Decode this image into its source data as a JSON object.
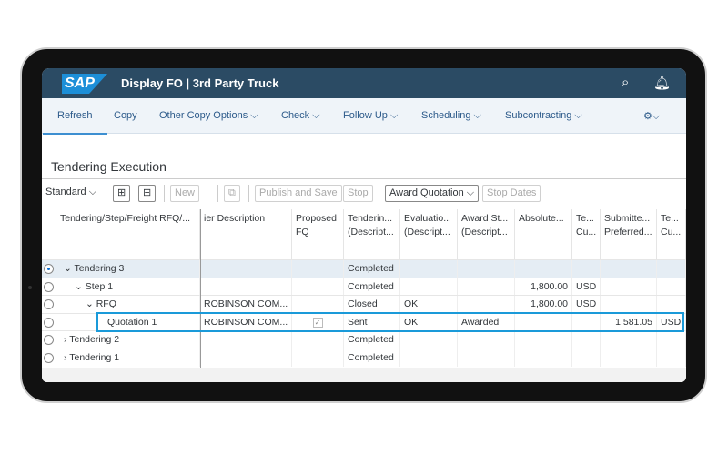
{
  "shell": {
    "logo": "SAP",
    "title": "Display FO | 3rd Party Truck",
    "search_icon": "search-icon",
    "bell_icon": "bell-icon"
  },
  "actions": [
    "Refresh",
    "Copy",
    "Other Copy Options ⌵",
    "Check ⌵",
    "Follow Up ⌵",
    "Scheduling ⌵",
    "Subcontracting ⌵"
  ],
  "settings": "⚙⌵",
  "section_title": "Tendering Execution",
  "toolbar": {
    "variant": "Standard ⌵",
    "expand": "⊞",
    "collapse": "⊟",
    "new": "New",
    "copy": "⧉",
    "publish": "Publish and Save",
    "stop": "Stop",
    "award": "Award Quotation ⌵",
    "stop_dates": "Stop Dates"
  },
  "columns": [
    "Tendering/Step/Freight RFQ/...",
    "ier Description",
    "Proposed\nFQ",
    "Tenderin...\n(Descript...",
    "Evaluatio...\n(Descript...",
    "Award St...\n(Descript...",
    "Absolute...",
    "Te...\nCu...",
    "Submitte...\nPreferred...",
    "Te...\nCu..."
  ],
  "rows": [
    {
      "selected": true,
      "node": "⌄ Tendering  3",
      "indent": 0,
      "desc": "",
      "fq": false,
      "tender": "Completed",
      "eval": "",
      "award": "",
      "abs": "",
      "cur": "",
      "sub": "",
      "cur2": ""
    },
    {
      "selected": false,
      "node": "⌄ Step  1",
      "indent": 1,
      "desc": "",
      "fq": false,
      "tender": "Completed",
      "eval": "",
      "award": "",
      "abs": "1,800.00",
      "cur": "USD",
      "sub": "",
      "cur2": ""
    },
    {
      "selected": false,
      "node": "⌄ RFQ",
      "indent": 2,
      "desc": "ROBINSON COM...",
      "fq": false,
      "tender": "Closed",
      "eval": "OK",
      "award": "",
      "abs": "1,800.00",
      "cur": "USD",
      "sub": "",
      "cur2": ""
    },
    {
      "selected": false,
      "node": "Quotation  1",
      "indent": 3,
      "desc": "ROBINSON COM...",
      "fq": true,
      "tender": "Sent",
      "eval": "OK",
      "award": "Awarded",
      "abs": "",
      "cur": "",
      "sub": "1,581.05",
      "cur2": "USD"
    },
    {
      "selected": false,
      "node": "› Tendering  2",
      "indent": 0,
      "desc": "",
      "fq": false,
      "tender": "Completed",
      "eval": "",
      "award": "",
      "abs": "",
      "cur": "",
      "sub": "",
      "cur2": ""
    },
    {
      "selected": false,
      "node": "› Tendering  1",
      "indent": 0,
      "desc": "",
      "fq": false,
      "tender": "Completed",
      "eval": "",
      "award": "",
      "abs": "",
      "cur": "",
      "sub": "",
      "cur2": ""
    }
  ],
  "colors": {
    "shell": "#2b4b64",
    "highlight": "#1a9ad9",
    "selected_row": "#e5edf4"
  }
}
